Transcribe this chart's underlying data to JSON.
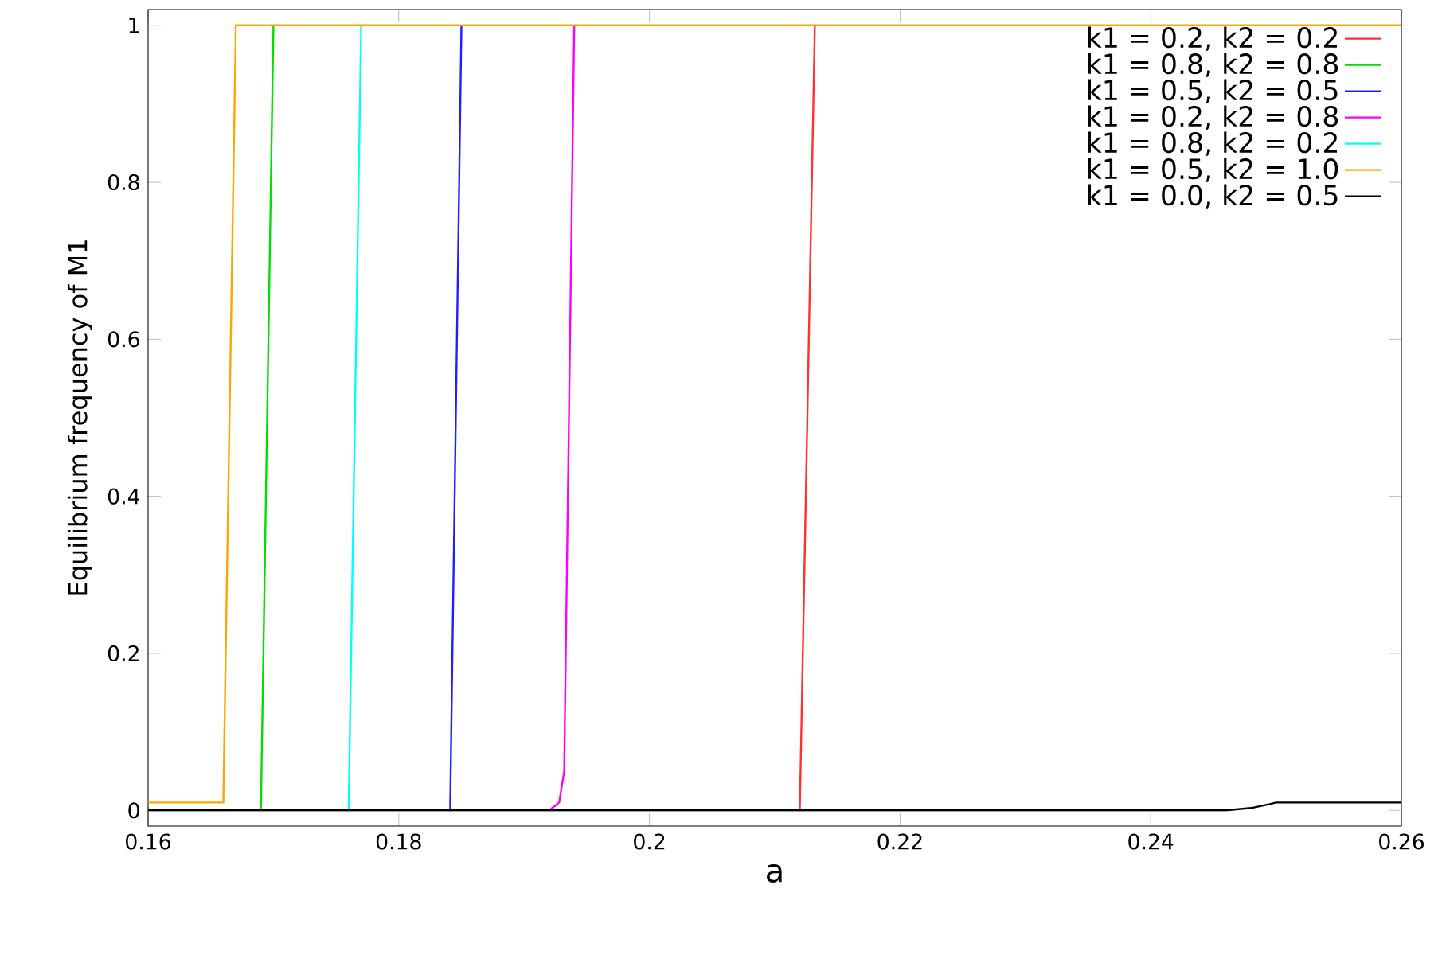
{
  "chart_data": {
    "type": "line",
    "xlabel": "a",
    "ylabel": "Equilibrium frequency of M1",
    "xlim": [
      0.16,
      0.26
    ],
    "ylim": [
      -0.02,
      1.02
    ],
    "xticks": [
      0.16,
      0.18,
      0.2,
      0.22,
      0.24,
      0.26
    ],
    "yticks": [
      0,
      0.2,
      0.4,
      0.6,
      0.8,
      1
    ],
    "legend": "top right",
    "series": [
      {
        "name": "k1 = 0.2, k2 = 0.2",
        "color": "#ff3030",
        "x": [
          0.212,
          0.2132
        ],
        "values": [
          0,
          1
        ]
      },
      {
        "name": "k1 = 0.8, k2 = 0.8",
        "color": "#00e000",
        "x": [
          0.169,
          0.17
        ],
        "values": [
          0,
          1
        ]
      },
      {
        "name": "k1 = 0.5, k2 = 0.5",
        "color": "#2020ff",
        "x": [
          0.1841,
          0.185
        ],
        "values": [
          0,
          1
        ]
      },
      {
        "name": "k1 = 0.2, k2 = 0.8",
        "color": "#ff00ff",
        "x": [
          0.192,
          0.1928,
          0.1932,
          0.194
        ],
        "values": [
          0,
          0.01,
          0.05,
          1
        ]
      },
      {
        "name": "k1 = 0.8, k2 = 0.2",
        "color": "#00ffff",
        "x": [
          0.176,
          0.177
        ],
        "values": [
          0,
          1
        ]
      },
      {
        "name": "k1 = 0.5, k2 = 1.0",
        "color": "#ffa500",
        "x": [
          0.16,
          0.166,
          0.167,
          0.26
        ],
        "values": [
          0.01,
          0.01,
          1,
          1
        ]
      },
      {
        "name": "k1 = 0.0, k2 = 0.5",
        "color": "#000000",
        "x": [
          0.16,
          0.246,
          0.248,
          0.2495,
          0.25,
          0.26
        ],
        "values": [
          0,
          0,
          0.003,
          0.008,
          0.01,
          0.01
        ]
      }
    ]
  }
}
